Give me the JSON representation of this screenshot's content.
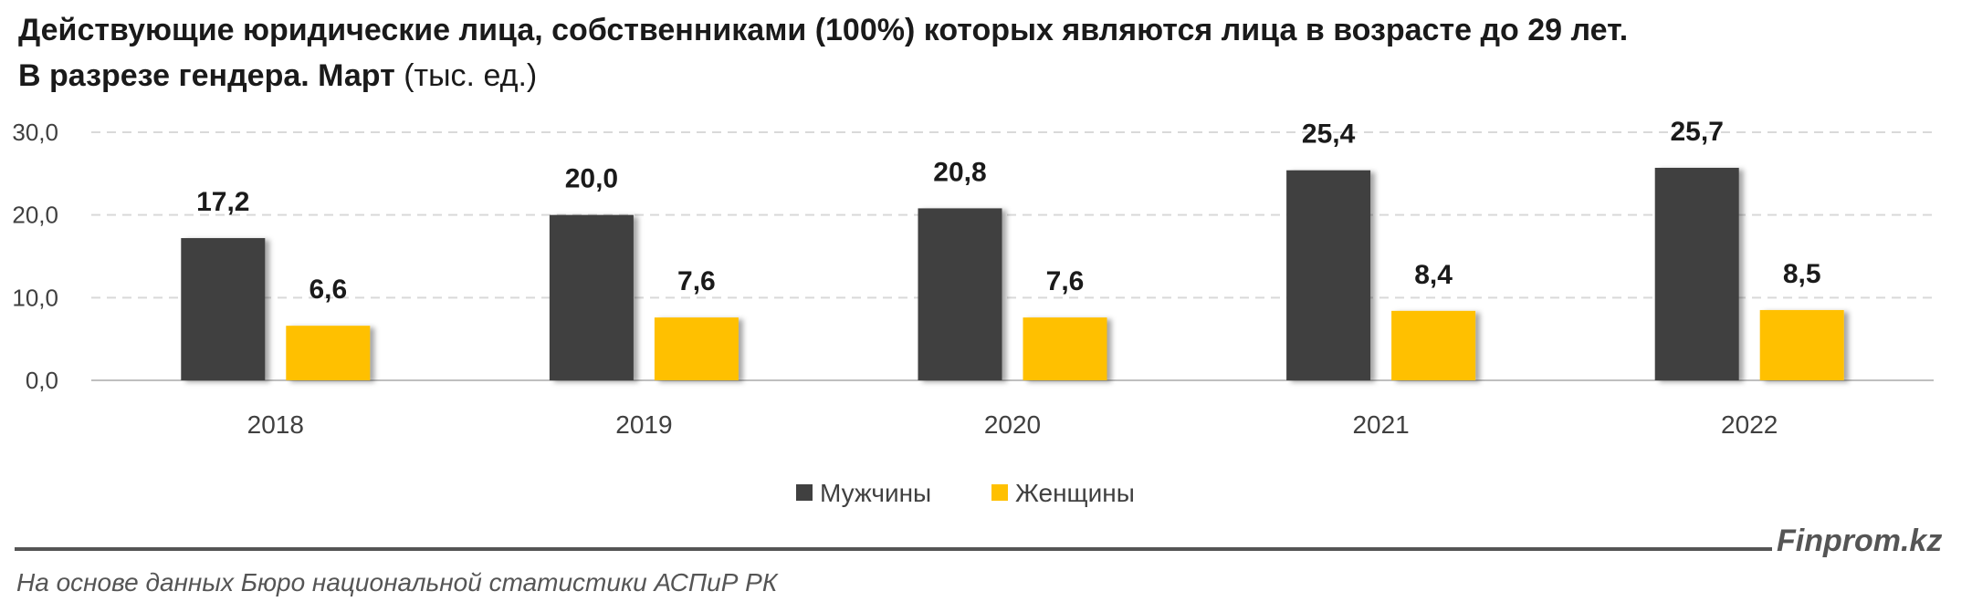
{
  "header": {
    "title_line1": "Действующие юридические лица, собственниками (100%) которых являются лица в возрасте до 29 лет.",
    "title_line2_bold": "В разрезе гендера. Март",
    "title_unit": "(тыс. ед.)"
  },
  "footer": {
    "brand": "Finprom.kz",
    "source": "На основе данных Бюро национальной статистики АСПиР РК"
  },
  "colors": {
    "men": "#404040",
    "women": "#FFC000",
    "grid": "#D9D9D9",
    "axis": "#BFBFBF",
    "text": "#404040"
  },
  "chart_data": {
    "type": "bar",
    "categories": [
      "2018",
      "2019",
      "2020",
      "2021",
      "2022"
    ],
    "series": [
      {
        "name": "Мужчины",
        "values": [
          17.2,
          20.0,
          20.8,
          25.4,
          25.7
        ],
        "labels": [
          "17,2",
          "20,0",
          "20,8",
          "25,4",
          "25,7"
        ],
        "color": "#404040"
      },
      {
        "name": "Женщины",
        "values": [
          6.6,
          7.6,
          7.6,
          8.4,
          8.5
        ],
        "labels": [
          "6,6",
          "7,6",
          "7,6",
          "8,4",
          "8,5"
        ],
        "color": "#FFC000"
      }
    ],
    "yticks": [
      0,
      10,
      20,
      30
    ],
    "ytick_labels": [
      "0,0",
      "10,0",
      "20,0",
      "30,0"
    ],
    "ylim": [
      0,
      30
    ],
    "grid": true,
    "legend_position": "bottom"
  }
}
